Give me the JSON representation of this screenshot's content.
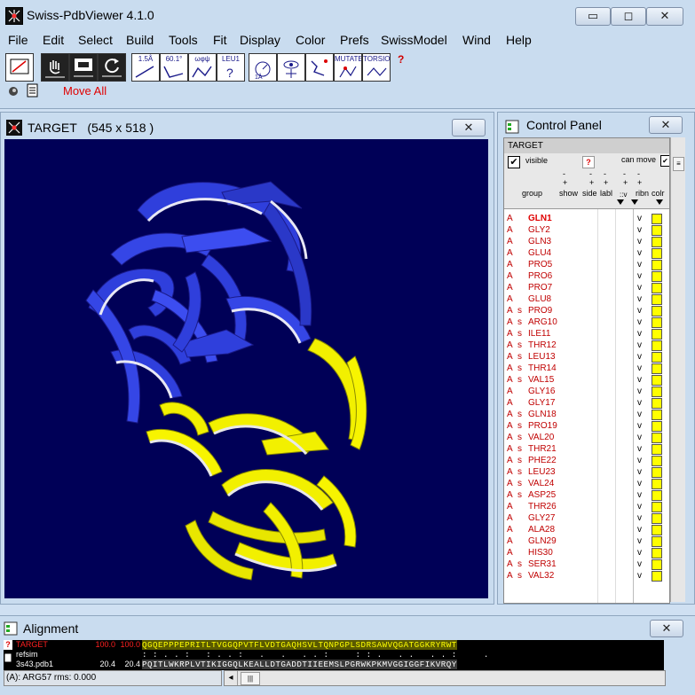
{
  "app": {
    "title": "Swiss-PdbViewer 4.1.0",
    "minimize": "▭",
    "maximize": "◻",
    "close": "✕"
  },
  "menu": [
    "File",
    "Edit",
    "Select",
    "Build",
    "Tools",
    "Fit",
    "Display",
    "Color",
    "Prefs",
    "SwissModel",
    "Wind",
    "Help"
  ],
  "toolbar": {
    "tools": [
      {
        "label": "",
        "icon": "select-icon"
      },
      {
        "label": "",
        "icon": "hand-icon"
      },
      {
        "label": "",
        "icon": "zoom-icon"
      },
      {
        "label": "",
        "icon": "rotate-icon"
      },
      {
        "label": "1.5Å",
        "icon": "distance-icon"
      },
      {
        "label": "60.1°",
        "icon": "angle-icon"
      },
      {
        "label": "ωφψ",
        "icon": "dihedral-icon"
      },
      {
        "label": "LEU1",
        "icon": "identify-icon"
      },
      {
        "label": "",
        "icon": "center-icon"
      },
      {
        "label": "",
        "icon": "neighbors-icon"
      },
      {
        "label": "",
        "icon": "fit-icon"
      },
      {
        "label": "",
        "icon": "fix-icon"
      },
      {
        "label": "MUTATE",
        "icon": "mutate-icon"
      },
      {
        "label": "TORSION",
        "icon": "torsion-icon"
      }
    ],
    "help": "?",
    "move_all": "Move All"
  },
  "target_window": {
    "title": "TARGET",
    "size": "(545 x 518 )",
    "close": "✕"
  },
  "control_panel": {
    "title": "Control Panel",
    "close": "✕",
    "molecule": "TARGET",
    "visible_label": "visible",
    "help": "?",
    "can_move": "can move",
    "col_dash": "-",
    "col_plus": "+",
    "col_group": "group",
    "col_show": "show",
    "col_side": "side",
    "col_labl": "labl",
    "col_v": "::v",
    "col_ribn": "ribn",
    "col_colr": "colr",
    "residues": [
      {
        "chain": "A",
        "ss": "",
        "name": "GLN1",
        "v": "v",
        "bold": true
      },
      {
        "chain": "A",
        "ss": "",
        "name": "GLY2",
        "v": "v"
      },
      {
        "chain": "A",
        "ss": "",
        "name": "GLN3",
        "v": "v"
      },
      {
        "chain": "A",
        "ss": "",
        "name": "GLU4",
        "v": "v"
      },
      {
        "chain": "A",
        "ss": "",
        "name": "PRO5",
        "v": "v"
      },
      {
        "chain": "A",
        "ss": "",
        "name": "PRO6",
        "v": "v"
      },
      {
        "chain": "A",
        "ss": "",
        "name": "PRO7",
        "v": "v"
      },
      {
        "chain": "A",
        "ss": "",
        "name": "GLU8",
        "v": "v"
      },
      {
        "chain": "A",
        "ss": "s",
        "name": "PRO9",
        "v": "v"
      },
      {
        "chain": "A",
        "ss": "s",
        "name": "ARG10",
        "v": "v"
      },
      {
        "chain": "A",
        "ss": "s",
        "name": "ILE11",
        "v": "v"
      },
      {
        "chain": "A",
        "ss": "s",
        "name": "THR12",
        "v": "v"
      },
      {
        "chain": "A",
        "ss": "s",
        "name": "LEU13",
        "v": "v"
      },
      {
        "chain": "A",
        "ss": "s",
        "name": "THR14",
        "v": "v"
      },
      {
        "chain": "A",
        "ss": "s",
        "name": "VAL15",
        "v": "v"
      },
      {
        "chain": "A",
        "ss": "",
        "name": "GLY16",
        "v": "v"
      },
      {
        "chain": "A",
        "ss": "",
        "name": "GLY17",
        "v": "v"
      },
      {
        "chain": "A",
        "ss": "s",
        "name": "GLN18",
        "v": "v"
      },
      {
        "chain": "A",
        "ss": "s",
        "name": "PRO19",
        "v": "v"
      },
      {
        "chain": "A",
        "ss": "s",
        "name": "VAL20",
        "v": "v"
      },
      {
        "chain": "A",
        "ss": "s",
        "name": "THR21",
        "v": "v"
      },
      {
        "chain": "A",
        "ss": "s",
        "name": "PHE22",
        "v": "v"
      },
      {
        "chain": "A",
        "ss": "s",
        "name": "LEU23",
        "v": "v"
      },
      {
        "chain": "A",
        "ss": "s",
        "name": "VAL24",
        "v": "v"
      },
      {
        "chain": "A",
        "ss": "s",
        "name": "ASP25",
        "v": "v"
      },
      {
        "chain": "A",
        "ss": "",
        "name": "THR26",
        "v": "v"
      },
      {
        "chain": "A",
        "ss": "",
        "name": "GLY27",
        "v": "v"
      },
      {
        "chain": "A",
        "ss": "",
        "name": "ALA28",
        "v": "v"
      },
      {
        "chain": "A",
        "ss": "",
        "name": "GLN29",
        "v": "v"
      },
      {
        "chain": "A",
        "ss": "",
        "name": "HIS30",
        "v": "v"
      },
      {
        "chain": "A",
        "ss": "s",
        "name": "SER31",
        "v": "v"
      },
      {
        "chain": "A",
        "ss": "s",
        "name": "VAL32",
        "v": "v"
      }
    ]
  },
  "alignment": {
    "title": "Alignment",
    "close": "✕",
    "rows": [
      {
        "name": "TARGET",
        "s1": "100.0",
        "s2": "100.0",
        "seq": "QGQEPPPEPRITLTVGGQPVTFLVDTGAQHSVLTQNPGPLSDRSAWVQGATGGKRYRWT",
        "color": "#ffff00",
        "namecolor": "#ff2020"
      },
      {
        "name": "refsim",
        "s1": "",
        "s2": "",
        "seq": ": : . . :   : . . :   .   .   . . :     : : .   . .   . . :     .",
        "color": "#ffffff",
        "namecolor": "#ffffff"
      },
      {
        "name": "3s43.pdb1",
        "s1": "20.4",
        "s2": "20.4",
        "seq": "PQITLWKRPLVTIKIGGQLKEALLDTGADDTIIEEMSLPGRWKPKMVGGIGGFIKVRQY",
        "color": "#ffffff",
        "namecolor": "#ffffff"
      }
    ],
    "status": "(A): ARG57    rms: 0.000",
    "help": "?",
    "scroll_thumb": "|||"
  },
  "colors": {
    "background": "#000057",
    "helix_sheet_blue": "#2f3fdc",
    "sheet_yellow": "#f2f000",
    "residue_text": "#c00000"
  }
}
